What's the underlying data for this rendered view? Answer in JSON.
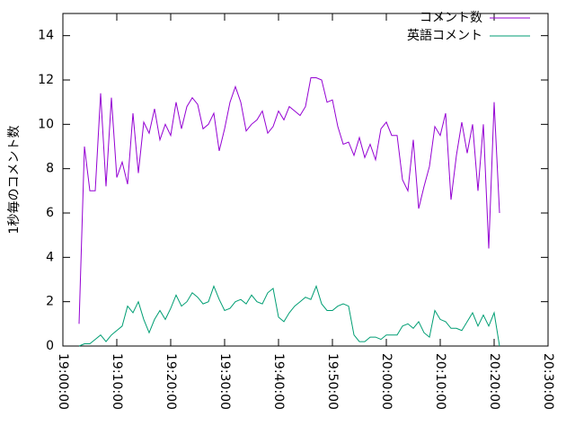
{
  "chart_data": {
    "type": "line",
    "y_label": "1秒毎のコメント数",
    "x": [
      "19:03:00",
      "19:04:00",
      "19:05:00",
      "19:06:00",
      "19:07:00",
      "19:08:00",
      "19:09:00",
      "19:10:00",
      "19:11:00",
      "19:12:00",
      "19:13:00",
      "19:14:00",
      "19:15:00",
      "19:16:00",
      "19:17:00",
      "19:18:00",
      "19:19:00",
      "19:20:00",
      "19:21:00",
      "19:22:00",
      "19:23:00",
      "19:24:00",
      "19:25:00",
      "19:26:00",
      "19:27:00",
      "19:28:00",
      "19:29:00",
      "19:30:00",
      "19:31:00",
      "19:32:00",
      "19:33:00",
      "19:34:00",
      "19:35:00",
      "19:36:00",
      "19:37:00",
      "19:38:00",
      "19:39:00",
      "19:40:00",
      "19:41:00",
      "19:42:00",
      "19:43:00",
      "19:44:00",
      "19:45:00",
      "19:46:00",
      "19:47:00",
      "19:48:00",
      "19:49:00",
      "19:50:00",
      "19:51:00",
      "19:52:00",
      "19:53:00",
      "19:54:00",
      "19:55:00",
      "19:56:00",
      "19:57:00",
      "19:58:00",
      "19:59:00",
      "20:00:00",
      "20:01:00",
      "20:02:00",
      "20:03:00",
      "20:04:00",
      "20:05:00",
      "20:06:00",
      "20:07:00",
      "20:08:00",
      "20:09:00",
      "20:10:00",
      "20:11:00",
      "20:12:00",
      "20:13:00",
      "20:14:00",
      "20:15:00",
      "20:16:00",
      "20:17:00",
      "20:18:00",
      "20:19:00",
      "20:20:00",
      "20:21:00"
    ],
    "series": [
      {
        "name": "コメント数",
        "color": "#9400d3",
        "values": [
          1,
          9,
          7,
          7,
          11.4,
          7.2,
          11.2,
          7.6,
          8.3,
          7.3,
          10.5,
          7.8,
          10.1,
          9.6,
          10.7,
          9.3,
          10,
          9.5,
          11,
          9.8,
          10.8,
          11.2,
          10.9,
          9.8,
          10,
          10.5,
          8.8,
          9.8,
          11,
          11.7,
          11,
          9.7,
          10,
          10.2,
          10.6,
          9.6,
          9.9,
          10.6,
          10.2,
          10.8,
          10.6,
          10.4,
          10.8,
          12.1,
          12.1,
          12,
          11,
          11.1,
          9.9,
          9.1,
          9.2,
          8.6,
          9.4,
          8.5,
          9.1,
          8.4,
          9.8,
          10.1,
          9.5,
          9.5,
          7.5,
          7,
          9.3,
          6.2,
          7.2,
          8.1,
          9.9,
          9.5,
          10.5,
          6.6,
          8.6,
          10.1,
          8.7,
          10,
          7,
          10,
          4.4,
          11,
          6
        ]
      },
      {
        "name": "英語コメント",
        "color": "#009e73",
        "values": [
          0,
          0.1,
          0.1,
          0.3,
          0.5,
          0.2,
          0.5,
          0.7,
          0.9,
          1.8,
          1.5,
          2,
          1.2,
          0.6,
          1.2,
          1.6,
          1.2,
          1.7,
          2.3,
          1.8,
          2,
          2.4,
          2.2,
          1.9,
          2,
          2.7,
          2.1,
          1.6,
          1.7,
          2,
          2.1,
          1.9,
          2.3,
          2,
          1.9,
          2.4,
          2.6,
          1.3,
          1.1,
          1.5,
          1.8,
          2,
          2.2,
          2.1,
          2.7,
          1.9,
          1.6,
          1.6,
          1.8,
          1.9,
          1.8,
          0.5,
          0.2,
          0.2,
          0.4,
          0.4,
          0.3,
          0.5,
          0.5,
          0.5,
          0.9,
          1,
          0.8,
          1.1,
          0.6,
          0.4,
          1.6,
          1.2,
          1.1,
          0.8,
          0.8,
          0.7,
          1.1,
          1.5,
          0.9,
          1.4,
          0.9,
          1.5,
          0
        ]
      }
    ],
    "xlim": [
      "19:00:00",
      "20:30:00"
    ],
    "xticks": [
      "19:00:00",
      "19:10:00",
      "19:20:00",
      "19:30:00",
      "19:40:00",
      "19:50:00",
      "20:00:00",
      "20:10:00",
      "20:20:00",
      "20:30:00"
    ],
    "ylim": [
      0,
      15
    ],
    "yticks": [
      0,
      2,
      4,
      6,
      8,
      10,
      12,
      14
    ],
    "legend": "top-right"
  }
}
